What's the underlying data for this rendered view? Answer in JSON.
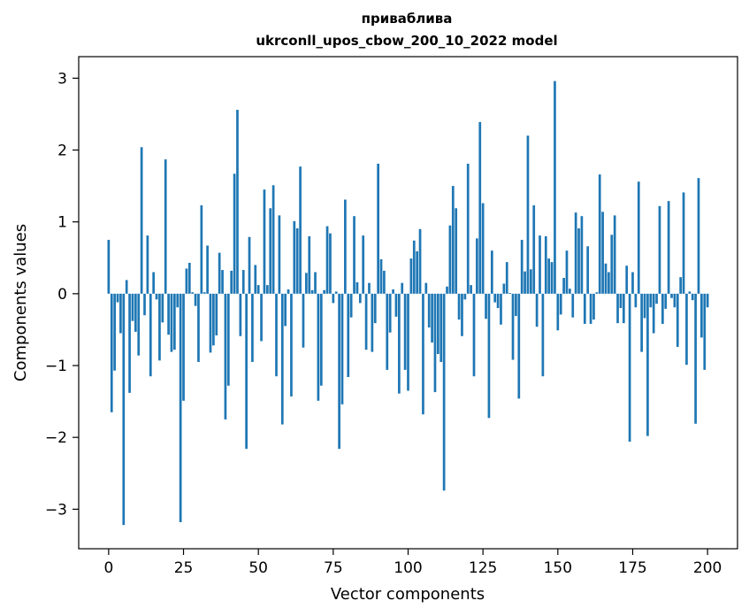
{
  "chart_data": {
    "type": "bar",
    "title": [
      "приваблива",
      "ukrconll_upos_cbow_200_10_2022 model"
    ],
    "xlabel": "Vector components",
    "ylabel": "Components values",
    "xlim": [
      -10,
      210
    ],
    "ylim": [
      -3.55,
      3.3
    ],
    "xticks": [
      0,
      25,
      50,
      75,
      100,
      125,
      150,
      175,
      200
    ],
    "yticks": [
      -3,
      -2,
      -1,
      0,
      1,
      2,
      3
    ],
    "ytick_labels": [
      "−3",
      "−2",
      "−1",
      "0",
      "1",
      "2",
      "3"
    ],
    "bar_color": "#1f77b4",
    "grid": false,
    "values": [
      0.75,
      -1.65,
      -1.07,
      -0.12,
      -0.55,
      -3.22,
      0.19,
      -1.38,
      -0.38,
      -0.53,
      -0.86,
      2.04,
      -0.3,
      0.81,
      -1.15,
      0.3,
      -0.08,
      -0.93,
      -0.4,
      1.87,
      -0.57,
      -0.81,
      -0.78,
      -0.19,
      -3.18,
      -1.49,
      0.35,
      0.43,
      0.02,
      -0.17,
      -0.95,
      1.23,
      0.02,
      0.67,
      -0.82,
      -0.72,
      -0.58,
      0.57,
      0.33,
      -1.75,
      -1.28,
      0.32,
      1.67,
      2.56,
      -0.59,
      0.33,
      -2.16,
      0.79,
      -0.95,
      0.4,
      0.12,
      -0.66,
      1.45,
      0.12,
      1.19,
      1.51,
      -1.15,
      1.09,
      -1.82,
      -0.45,
      0.06,
      -1.43,
      1.01,
      0.91,
      1.77,
      -0.75,
      0.29,
      0.8,
      0.05,
      0.3,
      -1.49,
      -1.28,
      0.05,
      0.94,
      0.84,
      -0.13,
      0.03,
      -2.16,
      -1.54,
      1.31,
      -1.16,
      -0.33,
      1.08,
      0.16,
      -0.13,
      0.81,
      -0.78,
      0.15,
      -0.81,
      -0.41,
      1.81,
      0.48,
      0.32,
      -1.06,
      -0.54,
      0.06,
      -0.32,
      -1.39,
      0.15,
      -1.06,
      -1.35,
      0.49,
      0.74,
      0.59,
      0.9,
      -1.68,
      0.15,
      -0.47,
      -0.68,
      -1.37,
      -0.84,
      -0.95,
      -2.74,
      0.1,
      0.95,
      1.5,
      1.19,
      -0.36,
      -0.59,
      -0.08,
      1.81,
      0.12,
      -1.15,
      0.77,
      2.39,
      1.26,
      -0.35,
      -1.73,
      0.6,
      -0.12,
      -0.2,
      -0.43,
      0.14,
      0.44,
      0.01,
      -0.92,
      -0.31,
      -1.46,
      0.75,
      0.31,
      2.2,
      0.34,
      1.23,
      -0.46,
      0.81,
      -1.15,
      0.8,
      0.49,
      0.44,
      2.96,
      -0.51,
      -0.29,
      0.22,
      0.6,
      0.07,
      -0.33,
      1.13,
      0.91,
      1.08,
      -0.42,
      0.66,
      -0.42,
      -0.36,
      0.02,
      1.66,
      1.14,
      0.42,
      0.3,
      0.82,
      1.09,
      -0.41,
      -0.2,
      -0.41,
      0.39,
      -2.06,
      0.3,
      -0.19,
      1.56,
      -0.81,
      -0.34,
      -1.98,
      -0.19,
      -0.55,
      -0.14,
      1.22,
      -0.42,
      -0.21,
      1.29,
      -0.06,
      -0.19,
      -0.74,
      0.23,
      1.41,
      -0.99,
      0.03,
      -0.09,
      -1.81,
      1.61,
      -0.61,
      -1.06,
      -0.19
    ]
  }
}
